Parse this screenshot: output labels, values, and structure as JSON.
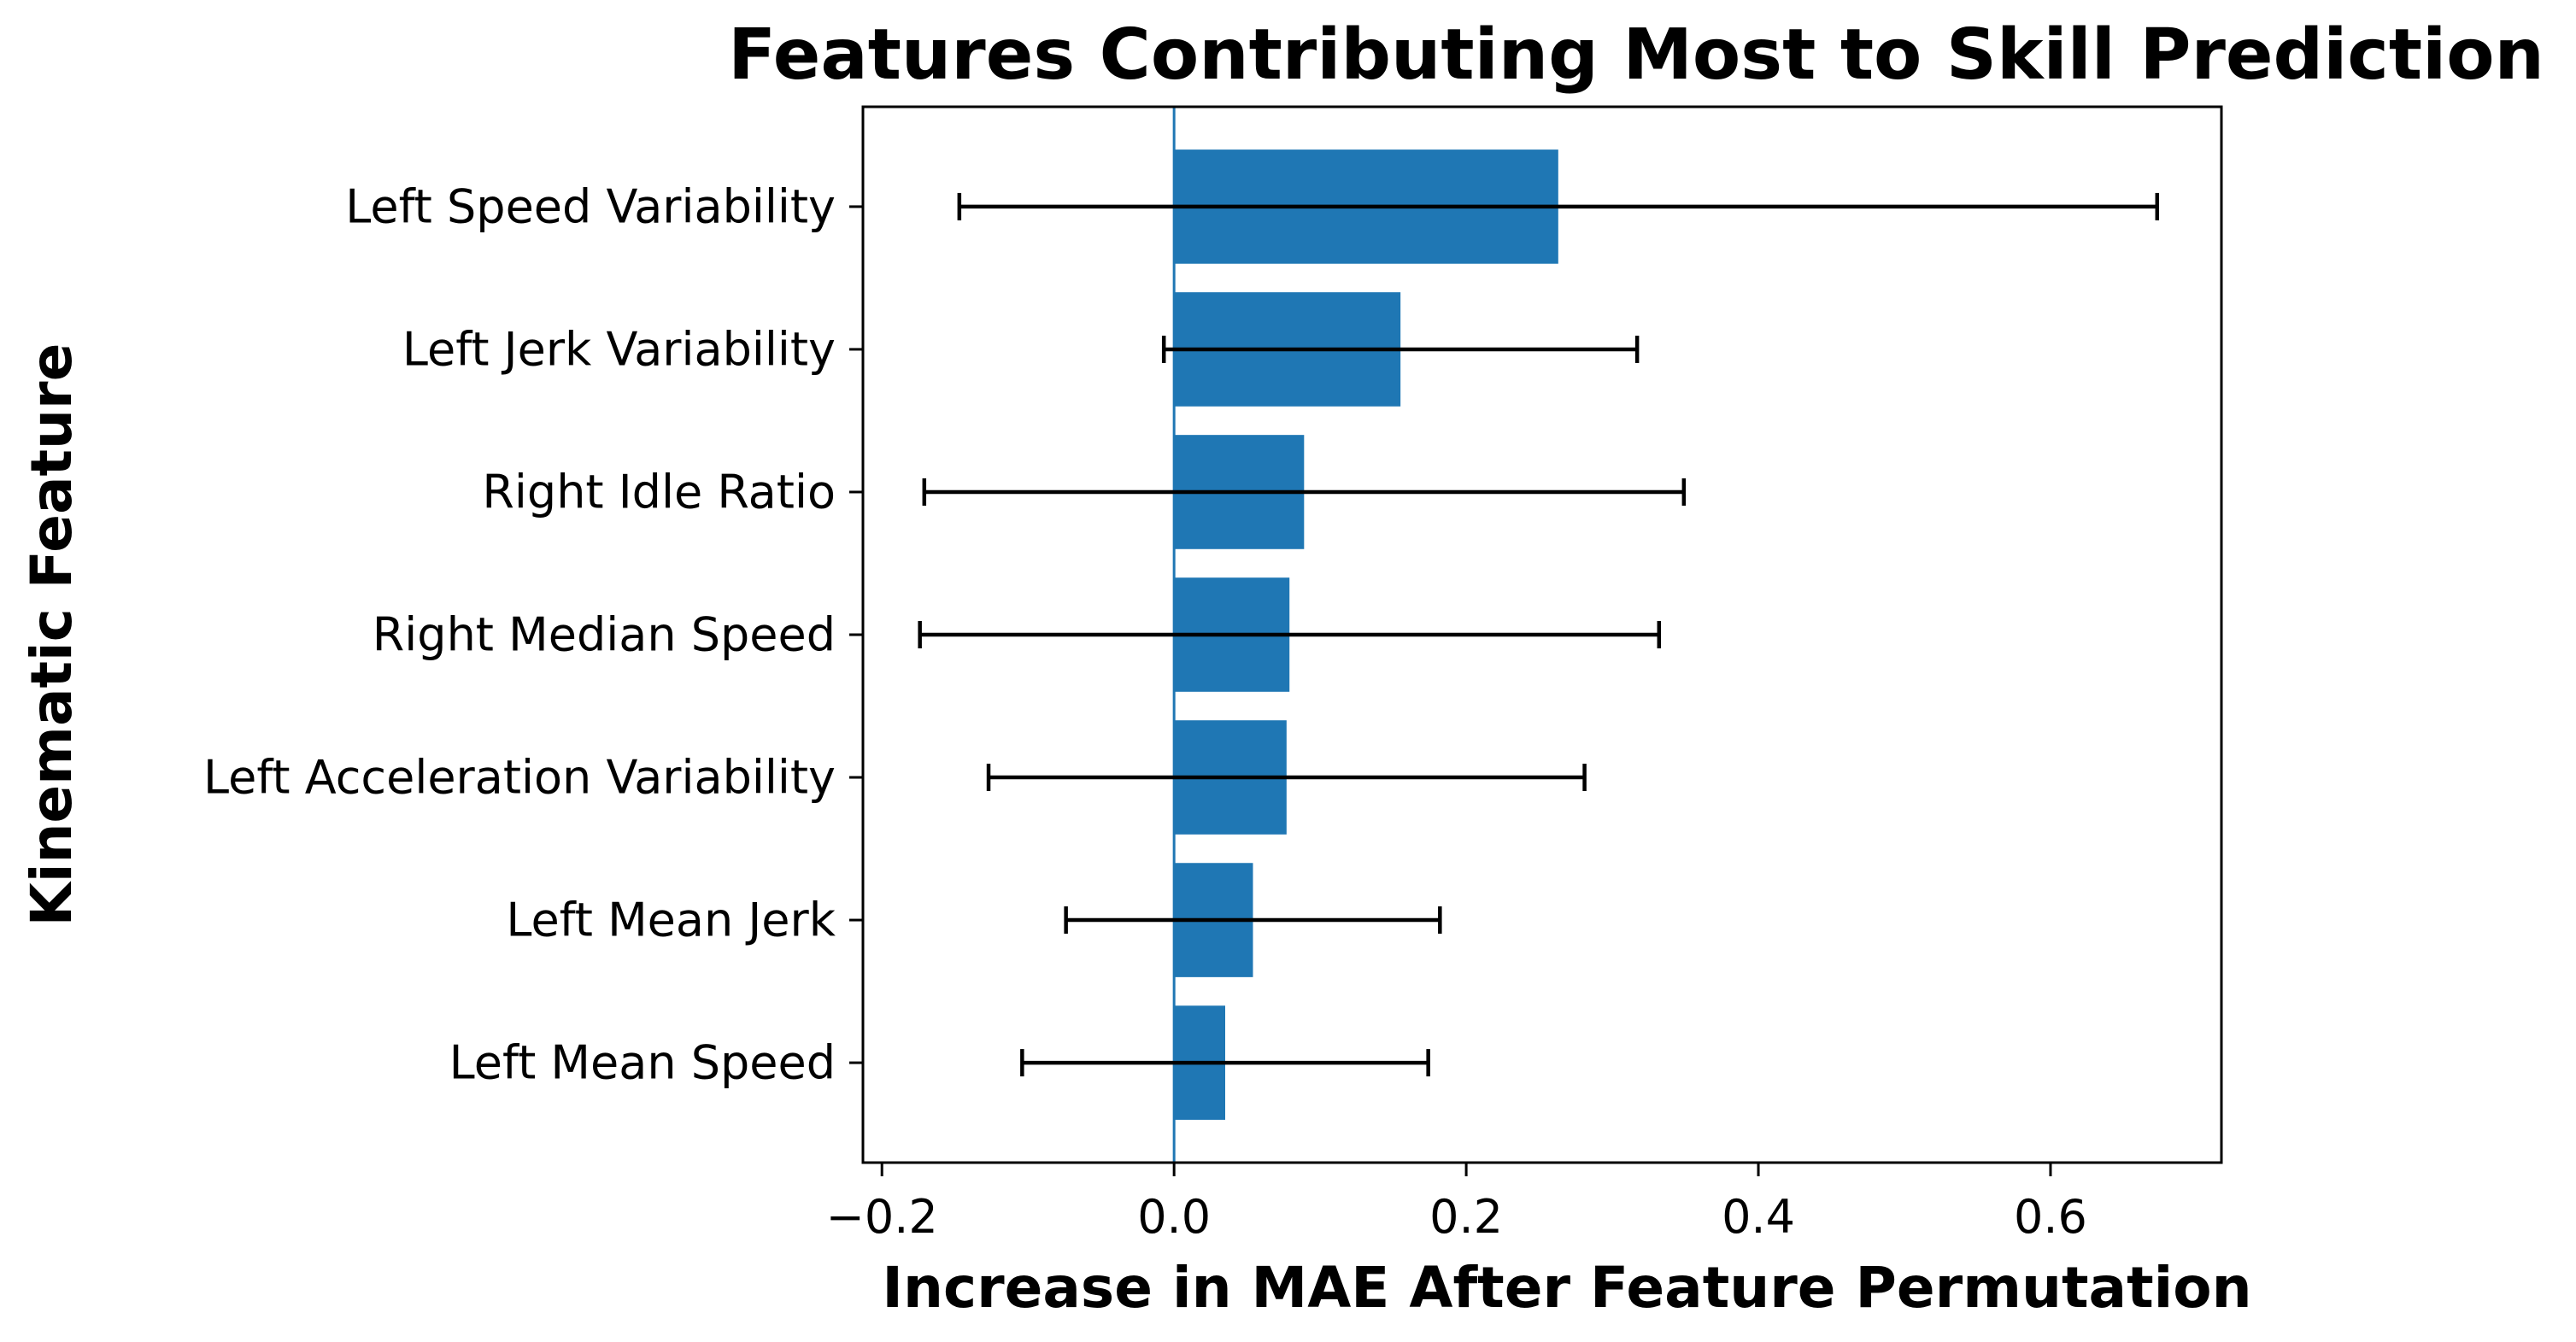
{
  "chart_data": {
    "type": "bar",
    "orientation": "horizontal",
    "title": "Features Contributing Most to Skill Prediction",
    "xlabel": "Increase in MAE After Feature Permutation",
    "ylabel": "Kinematic Feature",
    "categories": [
      "Left Speed Variability",
      "Left Jerk Variability",
      "Right Idle Ratio",
      "Right Median Speed",
      "Left Acceleration Variability",
      "Left Mean Jerk",
      "Left Mean Speed"
    ],
    "values": [
      0.263,
      0.155,
      0.089,
      0.079,
      0.077,
      0.054,
      0.035
    ],
    "errors": [
      0.41,
      0.162,
      0.26,
      0.253,
      0.204,
      0.128,
      0.139
    ],
    "xlim": [
      -0.213,
      0.717
    ],
    "xticks": [
      -0.2,
      0.0,
      0.2,
      0.4,
      0.6
    ],
    "xtick_labels": [
      "−0.2",
      "0.0",
      "0.2",
      "0.4",
      "0.6"
    ],
    "bar_color": "#1f77b4",
    "errorbar_color": "#000000",
    "reference_line": {
      "x": 0,
      "color": "#1f77b4"
    },
    "grid": false,
    "legend": null
  }
}
